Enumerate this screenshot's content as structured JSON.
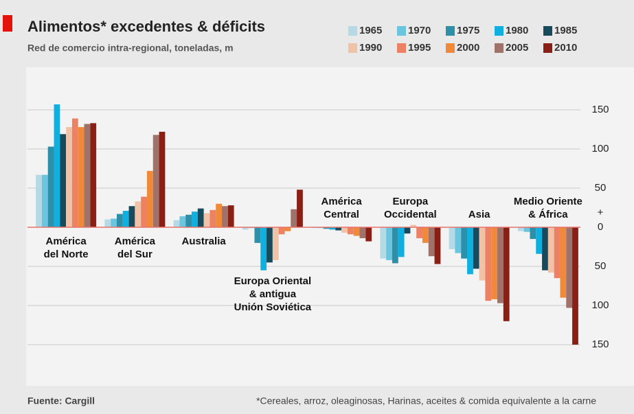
{
  "chart_data": {
    "type": "bar",
    "title": "Alimentos* excedentes & déficits",
    "subtitle": "Red de comercio intra-regional, toneladas, m",
    "source": "Fuente: Cargill",
    "note": "*Cereales, arroz, oleaginosas, Harinas, aceites & comida equivalente a la carne",
    "sign_label": "+",
    "categories": [
      [
        "América",
        "del Norte"
      ],
      [
        "América",
        "del Sur"
      ],
      [
        "Australia"
      ],
      [
        "Europa Oriental",
        "& antigua",
        "Unión Soviética"
      ],
      [
        "América",
        "Central"
      ],
      [
        "Europa",
        "Occidental"
      ],
      [
        "Asia"
      ],
      [
        "Medio Oriente",
        "& África"
      ]
    ],
    "series": [
      {
        "name": "1965",
        "color": "#b5dae6",
        "values": [
          67,
          10,
          9,
          -3,
          -1,
          -40,
          -28,
          -5
        ]
      },
      {
        "name": "1970",
        "color": "#6cc5df",
        "values": [
          67,
          11,
          14,
          -1,
          -1,
          -42,
          -33,
          -6
        ]
      },
      {
        "name": "1975",
        "color": "#2e8fa8",
        "values": [
          103,
          17,
          16,
          -20,
          -2,
          -46,
          -40,
          -15
        ]
      },
      {
        "name": "1980",
        "color": "#0fb0e0",
        "values": [
          157,
          21,
          20,
          -55,
          -3,
          -38,
          -60,
          -34
        ]
      },
      {
        "name": "1985",
        "color": "#174a5c",
        "values": [
          119,
          27,
          24,
          -45,
          -4,
          -8,
          -53,
          -55
        ]
      },
      {
        "name": "1990",
        "color": "#f0c3a9",
        "values": [
          128,
          33,
          18,
          -42,
          -7,
          3,
          -68,
          -58
        ]
      },
      {
        "name": "1995",
        "color": "#ec8263",
        "values": [
          139,
          39,
          22,
          -9,
          -9,
          -14,
          -94,
          -65
        ]
      },
      {
        "name": "2000",
        "color": "#f08a3a",
        "values": [
          128,
          72,
          30,
          -5,
          -11,
          -20,
          -92,
          -90
        ]
      },
      {
        "name": "2005",
        "color": "#a0736a",
        "values": [
          132,
          118,
          27,
          23,
          -14,
          -37,
          -97,
          -103
        ]
      },
      {
        "name": "2010",
        "color": "#8a1f16",
        "values": [
          133,
          122,
          28,
          48,
          -18,
          -47,
          -120,
          -150
        ]
      }
    ],
    "ylim": [
      -200,
      200
    ],
    "yticks": [
      150,
      100,
      50,
      0,
      {
        "value": -50,
        "label": "50"
      },
      {
        "value": -100,
        "label": "100"
      },
      {
        "value": -150,
        "label": "150"
      }
    ],
    "grid": true,
    "zero_line_color": "#e8736b"
  }
}
